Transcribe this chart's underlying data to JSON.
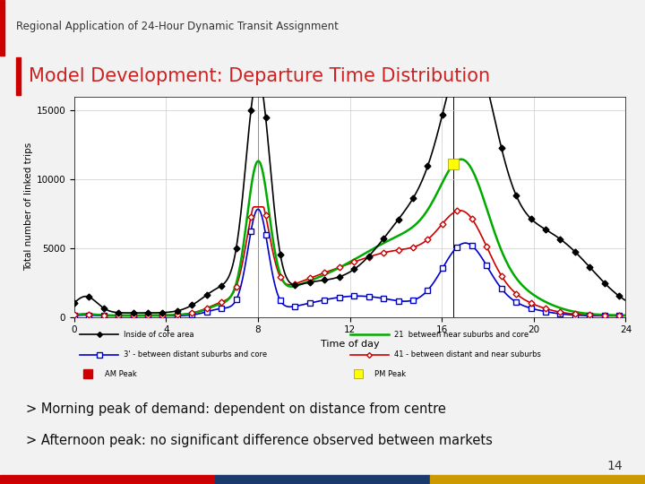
{
  "title": "Model Development: Departure Time Distribution",
  "header": "Regional Application of 24-Hour Dynamic Transit Assignment",
  "xlabel": "Time of day",
  "ylabel": "Total number of linked trips",
  "xlim": [
    0,
    24
  ],
  "ylim": [
    0,
    16000
  ],
  "yticks": [
    0,
    5000,
    10000,
    15000
  ],
  "xticks": [
    0,
    4,
    8,
    12,
    16,
    20,
    24
  ],
  "bullet1": "> Morning peak of demand: dependent on distance from centre",
  "bullet2": "> Afternoon peak: no significant difference observed between markets",
  "am_peak_x": 8.0,
  "pm_peak_x": 16.5,
  "slide_bg": "#f2f2f2",
  "chart_bg": "#ffffff",
  "header_bg": "#ffffff",
  "header_text_color": "#333333",
  "title_color": "#cc2222",
  "header_red_bar": "#cc0000",
  "bottom_bar_colors": [
    "#cc0000",
    "#1a3a6b",
    "#cc9900"
  ],
  "black_color": "#000000",
  "green_color": "#00aa00",
  "blue_color": "#0000cc",
  "red_color": "#cc0000",
  "am_marker_color": "#cc0000",
  "pm_marker_color": "#ffff00",
  "grid_color": "#cccccc",
  "page_num": "14"
}
